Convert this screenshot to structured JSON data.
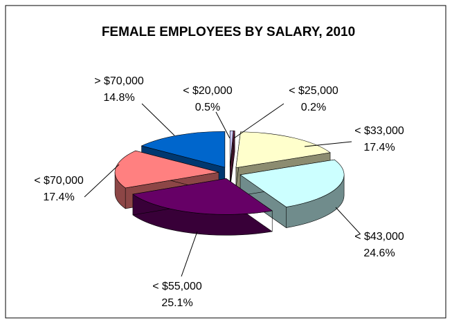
{
  "chart_data": {
    "type": "pie",
    "title": "FEMALE EMPLOYEES BY SALARY, 2010",
    "categories": [
      "< $20,000",
      "< $25,000",
      "< $33,000",
      "< $43,000",
      "< $55,000",
      "< $70,000",
      "> $70,000"
    ],
    "values": [
      0.5,
      0.2,
      17.4,
      24.6,
      25.1,
      17.4,
      14.8
    ],
    "value_labels": [
      "0.5%",
      "0.2%",
      "17.4%",
      "24.6%",
      "25.1%",
      "17.4%",
      "14.8%"
    ],
    "colors": [
      "#ccccff",
      "#993366",
      "#ffffcc",
      "#ccffff",
      "#660066",
      "#ff8080",
      "#0066cc"
    ]
  }
}
